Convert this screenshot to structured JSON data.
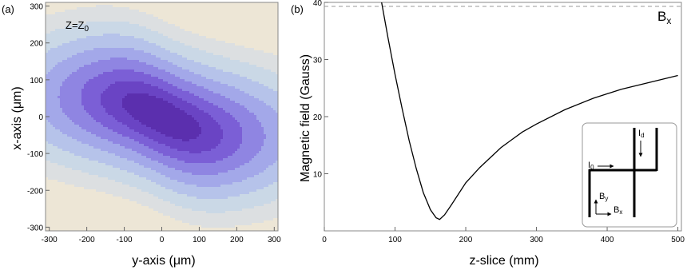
{
  "chart_data": [
    {
      "panel_label": "(a)",
      "type": "contour",
      "annotation": {
        "text": "Z=Z",
        "subscript": "0"
      },
      "xlabel": "y-axis (μm)",
      "ylabel": "x-axis (μm)",
      "xlim": [
        -310,
        310
      ],
      "ylim": [
        -310,
        310
      ],
      "x_ticks": [
        -300,
        -200,
        -100,
        0,
        100,
        200,
        300
      ],
      "y_ticks": [
        -300,
        -200,
        -100,
        0,
        100,
        200,
        300
      ],
      "level_colors": [
        "#ede6d6",
        "#dcdfe1",
        "#cad8e6",
        "#b6c3ea",
        "#a3a8e9",
        "#8f85e2",
        "#7b5fd6",
        "#6a44c4",
        "#5b2fae"
      ]
    },
    {
      "panel_label": "(b)",
      "type": "line",
      "annotation": {
        "text": "B",
        "subscript": "x"
      },
      "xlabel": "z-slice (mm)",
      "ylabel": "Magnetic field (Gauss)",
      "xlim": [
        0,
        505
      ],
      "ylim": [
        0,
        40
      ],
      "x_ticks": [
        0,
        100,
        200,
        300,
        400,
        500
      ],
      "y_ticks": [
        10,
        20,
        30,
        40
      ],
      "reference_line": {
        "y": 40,
        "style": "dashed"
      },
      "series": [
        {
          "x": [
            81,
            90,
            100,
            110,
            120,
            130,
            140,
            150,
            158,
            163,
            170,
            180,
            200,
            220,
            250,
            280,
            300,
            340,
            380,
            420,
            460,
            500
          ],
          "y": [
            40,
            33.8,
            27.4,
            21.4,
            15.8,
            10.9,
            6.7,
            3.7,
            2.3,
            2.0,
            2.8,
            4.6,
            8.4,
            11.1,
            14.6,
            17.3,
            18.7,
            21.2,
            23.2,
            24.8,
            26.0,
            27.2
          ]
        }
      ],
      "inset": {
        "labels": [
          {
            "text": "I",
            "subscript": "0"
          },
          {
            "text": "I",
            "subscript": "d"
          },
          {
            "text": "B",
            "subscript": "y"
          },
          {
            "text": "B",
            "subscript": "x"
          }
        ]
      }
    }
  ]
}
